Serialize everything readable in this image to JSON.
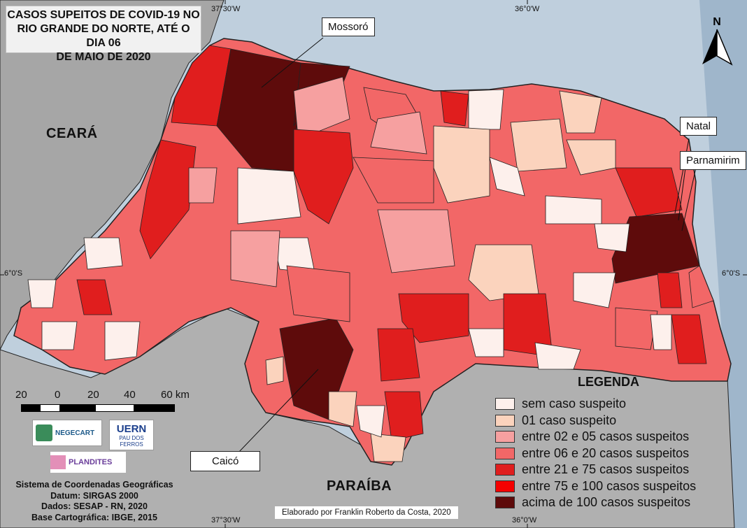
{
  "title": "CASOS SUPEITOS DE COVID-19 NO RIO GRANDE DO NORTE, ATÉ O DIA 06 DE MAIO DE 2020",
  "title_lines": [
    "CASOS SUPEITOS DE COVID-19 NO",
    "RIO GRANDE DO NORTE, ATÉ O DIA 06",
    "DE MAIO DE 2020"
  ],
  "regions": {
    "ceara": "CEARÁ",
    "paraiba": "PARAÍBA"
  },
  "callouts": {
    "mossoro": "Mossoró",
    "natal": "Natal",
    "parnamirim": "Parnamirim",
    "caico": "Caicó"
  },
  "coordinates": {
    "top_left": "37°30'W",
    "top_right": "36°0'W",
    "bottom_left": "37°30'W",
    "bottom_right": "36°0'W",
    "left": "6°0'S",
    "right": "6°0'S"
  },
  "north_label": "N",
  "scale": {
    "labels": [
      "20",
      "0",
      "20",
      "40",
      "60 km"
    ]
  },
  "legend": {
    "title": "LEGENDA",
    "items": [
      {
        "label": "sem caso suspeito",
        "color": "#fdf0ec"
      },
      {
        "label": "01 caso suspeito",
        "color": "#fbd3bd"
      },
      {
        "label": "entre 02 e 05 casos suspeitos",
        "color": "#f6a0a0"
      },
      {
        "label": "entre 06 e 20 casos suspeitos",
        "color": "#f26767"
      },
      {
        "label": "entre 21 e 75 casos suspeitos",
        "color": "#e01e1e"
      },
      {
        "label": "entre 75 e 100 casos suspeitos",
        "color": "#f50000"
      },
      {
        "label": "acima de 100 casos suspeitos",
        "color": "#5e0b0b"
      }
    ]
  },
  "logos": {
    "negecart": "NEGECART",
    "uern": "UERN",
    "uern_sub": "PAU DOS FERROS",
    "plandites": "PLANDITES"
  },
  "footer": [
    "Sistema de Coordenadas Geográficas",
    "Datum: SIRGAS 2000",
    "Dados: SESAP - RN, 2020",
    "Base Cartográfica: IBGE, 2015"
  ],
  "credit": "Elaborado por Franklin Roberto da Costa, 2020",
  "colors": {
    "ocean": "#bfcfdd",
    "land": "#a8a8a8",
    "border": "#222222"
  }
}
